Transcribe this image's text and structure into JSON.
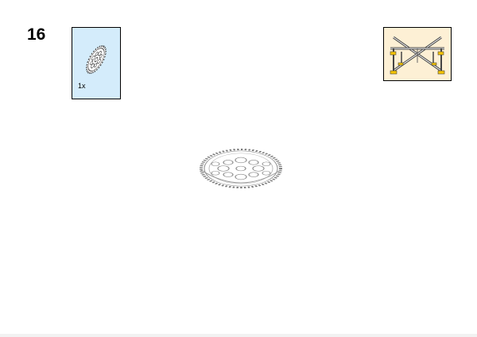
{
  "step": {
    "number": "16"
  },
  "parts_list": {
    "items": [
      {
        "part": "gear-40-tooth-icon",
        "quantity": "1x"
      }
    ],
    "background": "#d4ecfb"
  },
  "submodel_preview": {
    "icon": "cross-frame-assembly-icon",
    "background": "#fdf0d5",
    "accent": "#f5c400"
  },
  "model_view": {
    "icon": "gear-40-tooth-icon"
  }
}
